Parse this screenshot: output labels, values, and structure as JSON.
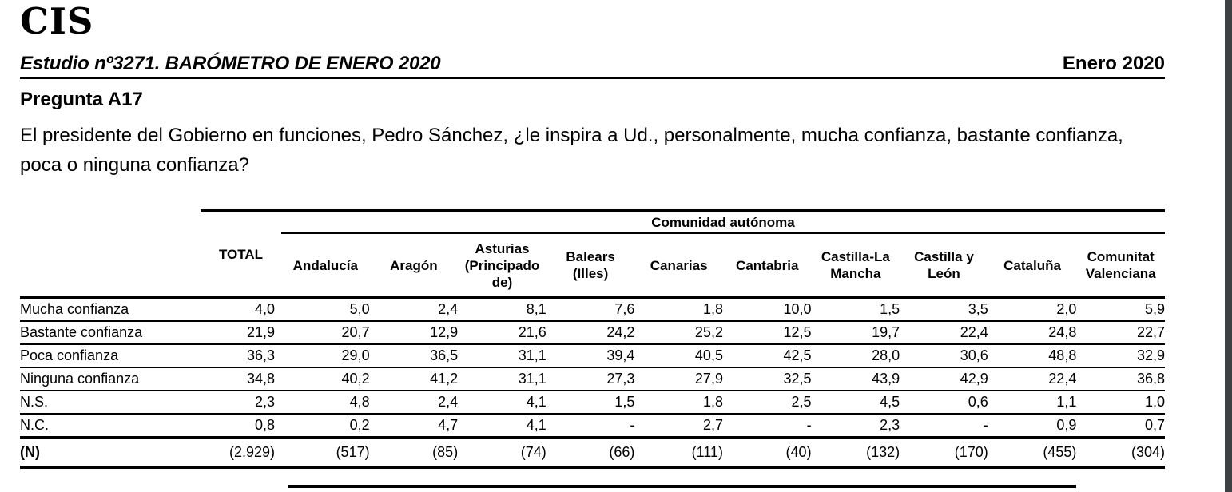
{
  "header": {
    "logo": "CIS",
    "study_title": "Estudio nº3271. BARÓMETRO DE ENERO 2020",
    "date_label": "Enero 2020"
  },
  "question": {
    "id": "Pregunta A17",
    "text": "El presidente del Gobierno en funciones, Pedro Sánchez, ¿le inspira a Ud., personalmente, mucha confianza, bastante confianza, poca o ninguna confianza?"
  },
  "table": {
    "group_header": "Comunidad autónoma",
    "columns": [
      "TOTAL",
      "Andalucía",
      "Aragón",
      "Asturias (Principado de)",
      "Balears (Illes)",
      "Canarias",
      "Cantabria",
      "Castilla-La Mancha",
      "Castilla y León",
      "Cataluña",
      "Comunitat Valenciana"
    ],
    "rows": [
      {
        "label": "Mucha confianza",
        "values": [
          "4,0",
          "5,0",
          "2,4",
          "8,1",
          "7,6",
          "1,8",
          "10,0",
          "1,5",
          "3,5",
          "2,0",
          "5,9"
        ]
      },
      {
        "label": "Bastante confianza",
        "values": [
          "21,9",
          "20,7",
          "12,9",
          "21,6",
          "24,2",
          "25,2",
          "12,5",
          "19,7",
          "22,4",
          "24,8",
          "22,7"
        ]
      },
      {
        "label": "Poca confianza",
        "values": [
          "36,3",
          "29,0",
          "36,5",
          "31,1",
          "39,4",
          "40,5",
          "42,5",
          "28,0",
          "30,6",
          "48,8",
          "32,9"
        ]
      },
      {
        "label": "Ninguna confianza",
        "values": [
          "34,8",
          "40,2",
          "41,2",
          "31,1",
          "27,3",
          "27,9",
          "32,5",
          "43,9",
          "42,9",
          "22,4",
          "36,8"
        ]
      },
      {
        "label": "N.S.",
        "values": [
          "2,3",
          "4,8",
          "2,4",
          "4,1",
          "1,5",
          "1,8",
          "2,5",
          "4,5",
          "0,6",
          "1,1",
          "1,0"
        ]
      },
      {
        "label": "N.C.",
        "values": [
          "0,8",
          "0,2",
          "4,7",
          "4,1",
          "-",
          "2,7",
          "-",
          "2,3",
          "-",
          "0,9",
          "0,7"
        ]
      },
      {
        "label": "(N)",
        "bold": true,
        "values": [
          "(2.929)",
          "(517)",
          "(85)",
          "(74)",
          "(66)",
          "(111)",
          "(40)",
          "(132)",
          "(170)",
          "(455)",
          "(304)"
        ]
      }
    ]
  },
  "colors": {
    "text": "#000000",
    "background": "#ffffff",
    "viewer_edge": "#3c4043"
  }
}
